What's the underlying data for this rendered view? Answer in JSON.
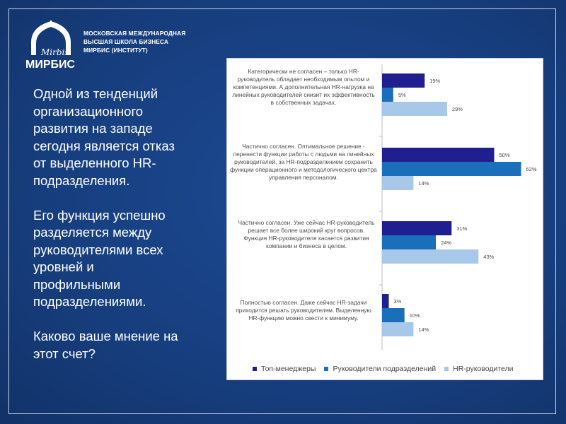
{
  "logo": {
    "brand_script": "Mirbis",
    "brand_name": "МИРБИС"
  },
  "org": {
    "line1": "МОСКОВСКАЯ МЕЖДУНАРОДНАЯ",
    "line2": "ВЫСШАЯ ШКОЛА БИЗНЕСА",
    "line3": "МИРБИС (ИНСТИТУТ)"
  },
  "body": {
    "p1": "Одной из тенденций\nорганизационного\nразвития на западе\nсегодня является отказ\nот выделенного HR-\nподразделения.",
    "p2": "Его функция успешно\nразделяется между\nруководителями всех\nуровней  и\nпрофильными\nподразделениями.",
    "p3": "Каково ваше мнение на\nэтот счет?"
  },
  "colors": {
    "background": "#173f80",
    "top_managers": "#1f1f8f",
    "dept_heads": "#1b6fba",
    "hr_heads": "#a8c8ea"
  },
  "chart_data": {
    "type": "bar",
    "orientation": "horizontal",
    "categories": [
      "Категорически не согласен – только HR-руководитель обладает необходимым опытом и компетенциями. А дополнительная HR-нагрузка на линейных руководителей снизит их эффективность в собственных задачах.",
      "Частично согласен.  Оптимальное решение - перенести функции работы с людьми на линейных руководителей, за HR-подразделением сохранить функции операционного и методологического центра управления персоналом.",
      "Частично согласен. Уже сейчас HR-руководитель решает все более широкий круг вопросов. Функция HR-руководителя касается развития компании и бизнеса в целом.",
      "Полностью согласен. Даже сейчас HR-задачи приходится решать руководителям. Выделенную HR-функцию можно свести к минимуму."
    ],
    "series": [
      {
        "name": "Топ-менеджеры",
        "values": [
          19,
          50,
          31,
          3
        ]
      },
      {
        "name": "Руководители подразделений",
        "values": [
          5,
          62,
          24,
          10
        ]
      },
      {
        "name": "HR-руководители",
        "values": [
          29,
          14,
          43,
          14
        ]
      }
    ],
    "value_suffix": "%",
    "legend": "bottom",
    "grid": false
  }
}
